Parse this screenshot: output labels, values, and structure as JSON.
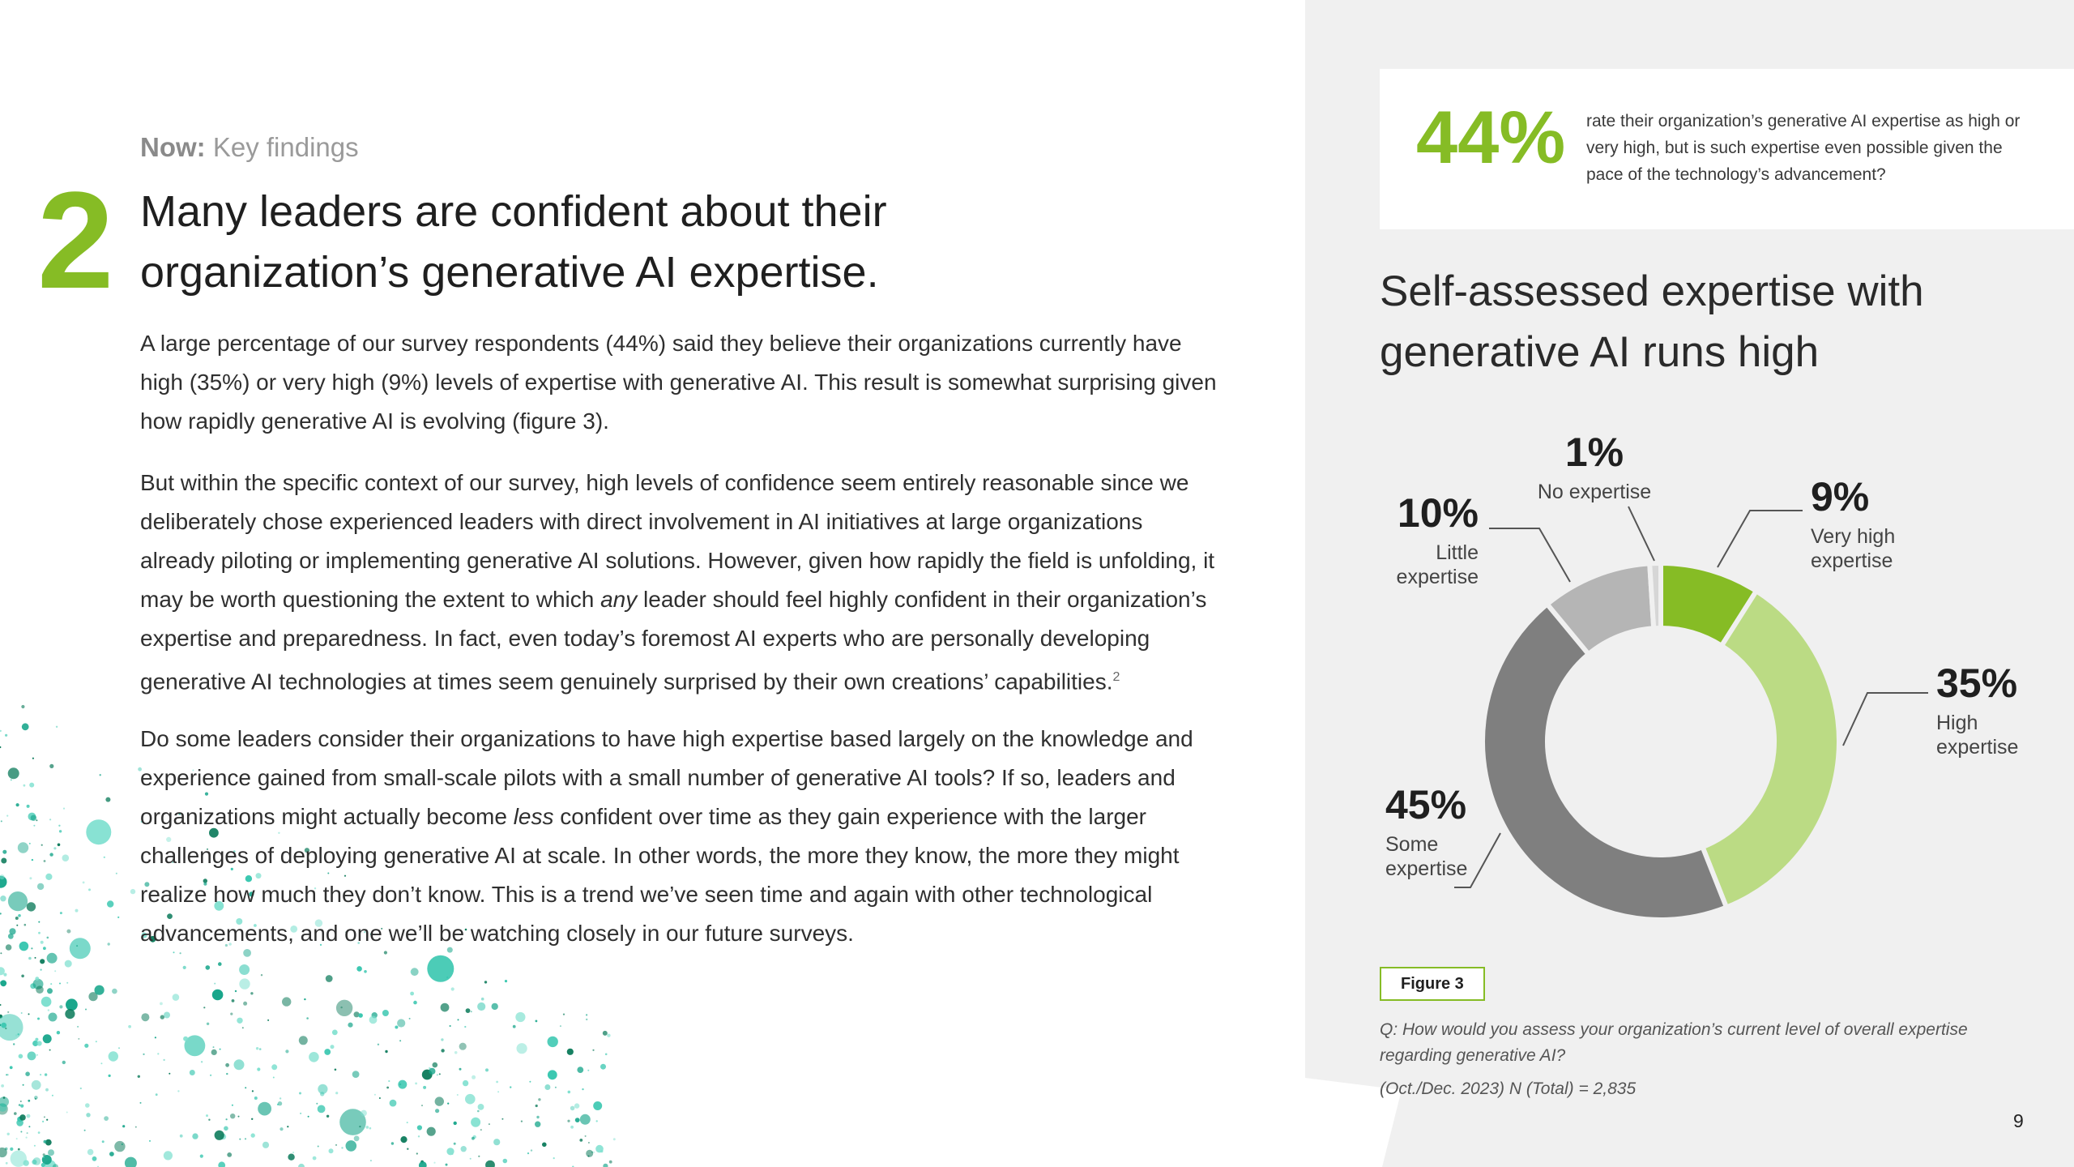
{
  "section": {
    "eyebrow_bold": "Now:",
    "eyebrow_rest": "Key findings",
    "number": "2"
  },
  "headline": "Many leaders are confident about their organization’s generative AI expertise.",
  "body": {
    "p1": "A large percentage of our survey respondents (44%) said they believe their organizations currently have high (35%) or very high (9%) levels of expertise with generative AI. This result is somewhat surprising given how rapidly generative AI is evolving (figure 3).",
    "p2_a": "But within the specific context of our survey, high levels of confidence seem entirely reasonable since we deliberately chose experienced leaders with direct involvement in AI initiatives at large organizations already piloting or implementing generative AI solutions. However, given how rapidly the field is unfolding, it may be worth questioning the extent to which ",
    "p2_em": "any",
    "p2_b": " leader should feel highly confident in their organization’s expertise and preparedness. In fact, even today’s foremost AI experts who are personally developing generative AI technologies at times seem genuinely surprised by their own creations’ capabilities.",
    "p2_note": "2",
    "p3_a": "Do some leaders consider their organizations to have high expertise based largely on the knowledge and experience gained from small-scale pilots with a small number of generative AI tools? If so, leaders and organizations might actually become ",
    "p3_em": "less",
    "p3_b": " confident over time as they gain experience with the larger challenges of deploying generative AI at scale. In other words, the more they know, the more they might realize how much they don’t know. This is a trend we’ve seen time and again with other technological advancements, and one we’ll be watching closely in our future surveys."
  },
  "callout": {
    "stat": "44%",
    "text": "rate their organization’s generative AI expertise as high or very high, but is such expertise even possible given the pace of the technology’s advancement?"
  },
  "figure": {
    "title": "Self-assessed expertise with generative AI runs high",
    "tag": "Figure 3",
    "question": "Q: How would you assess your organization’s current level of overall expertise regarding generative AI?",
    "base": "(Oct./Dec. 2023) N (Total) = 2,835"
  },
  "chart_data": {
    "type": "pie",
    "donut": true,
    "title": "Self-assessed expertise with generative AI runs high",
    "categories": [
      "Very high expertise",
      "High expertise",
      "Some expertise",
      "Little expertise",
      "No expertise"
    ],
    "values": [
      9,
      35,
      45,
      10,
      1
    ],
    "value_labels": [
      "9%",
      "35%",
      "45%",
      "10%",
      "1%"
    ],
    "label_lines": [
      [
        "Very high",
        "expertise"
      ],
      [
        "High",
        "expertise"
      ],
      [
        "Some",
        "expertise"
      ],
      [
        "Little",
        "expertise"
      ],
      [
        "No expertise"
      ]
    ],
    "colors": [
      "#86bc25",
      "#bbdb84",
      "#7f7f7f",
      "#b5b5b5",
      "#d6d6d6"
    ]
  },
  "page_number": "9",
  "colors": {
    "accent": "#86bc25",
    "panel": "#f0f0f0",
    "splash": [
      "#0b7a5a",
      "#16a58a",
      "#3ac7b0",
      "#7ee0cf"
    ]
  }
}
